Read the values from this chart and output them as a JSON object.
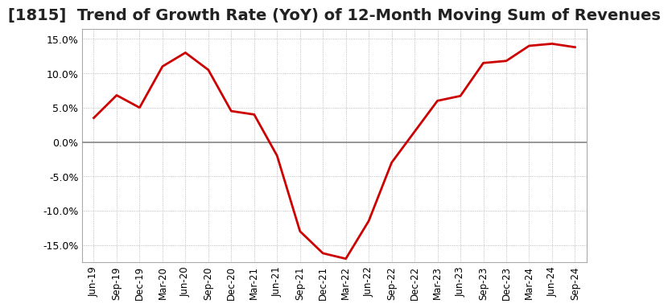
{
  "title": "[1815]  Trend of Growth Rate (YoY) of 12-Month Moving Sum of Revenues",
  "title_fontsize": 14,
  "line_color": "#cc0000",
  "line_width": 2.0,
  "background_color": "#ffffff",
  "grid_color": "#aaaaaa",
  "zero_line_color": "#888888",
  "spine_color": "#aaaaaa",
  "ylim": [
    -0.175,
    0.165
  ],
  "yticks": [
    -0.15,
    -0.1,
    -0.05,
    0.0,
    0.05,
    0.1,
    0.15
  ],
  "dates": [
    "Jun-19",
    "Sep-19",
    "Dec-19",
    "Mar-20",
    "Jun-20",
    "Sep-20",
    "Dec-20",
    "Mar-21",
    "Jun-21",
    "Sep-21",
    "Dec-21",
    "Mar-22",
    "Jun-22",
    "Sep-22",
    "Dec-22",
    "Mar-23",
    "Jun-23",
    "Sep-23",
    "Dec-23",
    "Mar-24",
    "Jun-24",
    "Sep-24"
  ],
  "values": [
    0.035,
    0.068,
    0.05,
    0.11,
    0.13,
    0.105,
    0.045,
    0.04,
    -0.02,
    -0.13,
    -0.162,
    -0.17,
    -0.115,
    -0.03,
    0.015,
    0.06,
    0.067,
    0.115,
    0.118,
    0.14,
    0.143,
    0.138
  ]
}
